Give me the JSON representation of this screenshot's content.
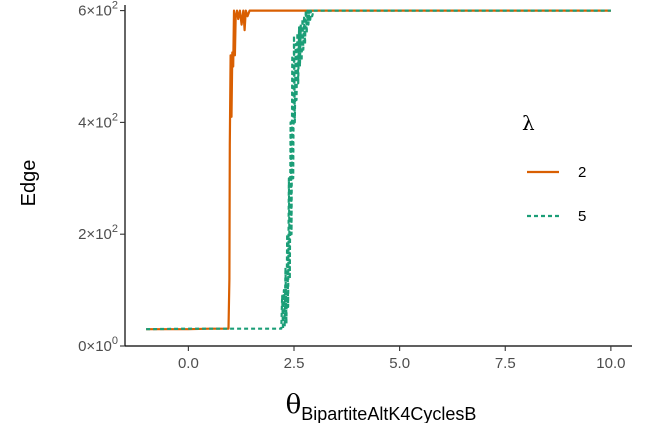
{
  "chart_data": {
    "type": "line",
    "xlabel": {
      "symbol": "θ",
      "subscript": "BipartiteAltK4CyclesB"
    },
    "ylabel": "Edge",
    "xlim": [
      -1.5,
      10.5
    ],
    "ylim": [
      0,
      610
    ],
    "x_ticks": [
      {
        "value": 0,
        "label": "0.0"
      },
      {
        "value": 2.5,
        "label": "2.5"
      },
      {
        "value": 5,
        "label": "5.0"
      },
      {
        "value": 7.5,
        "label": "7.5"
      },
      {
        "value": 10,
        "label": "10.0"
      }
    ],
    "y_ticks": [
      {
        "value": 0,
        "mantissa": "0",
        "times": "×",
        "base": "10",
        "exp": "0"
      },
      {
        "value": 200,
        "mantissa": "2",
        "times": "×",
        "base": "10",
        "exp": "2"
      },
      {
        "value": 400,
        "mantissa": "4",
        "times": "×",
        "base": "10",
        "exp": "2"
      },
      {
        "value": 600,
        "mantissa": "6",
        "times": "×",
        "base": "10",
        "exp": "2"
      }
    ],
    "grid": false,
    "legend": {
      "title": "λ",
      "position": "right"
    },
    "series": [
      {
        "name": "2",
        "color": "#d95f02",
        "dash": "solid",
        "points": [
          [
            -1,
            30
          ],
          [
            0,
            30
          ],
          [
            0.5,
            31
          ],
          [
            0.95,
            31
          ],
          [
            0.97,
            120
          ],
          [
            0.98,
            360
          ],
          [
            1.0,
            520
          ],
          [
            1.02,
            410
          ],
          [
            1.04,
            525
          ],
          [
            1.06,
            500
          ],
          [
            1.08,
            600
          ],
          [
            1.1,
            520
          ],
          [
            1.12,
            590
          ],
          [
            1.15,
            600
          ],
          [
            1.18,
            585
          ],
          [
            1.22,
            600
          ],
          [
            1.26,
            575
          ],
          [
            1.3,
            600
          ],
          [
            1.33,
            565
          ],
          [
            1.36,
            600
          ],
          [
            1.4,
            590
          ],
          [
            1.45,
            600
          ],
          [
            2,
            600
          ],
          [
            3,
            600
          ],
          [
            5,
            600
          ],
          [
            7.5,
            600
          ],
          [
            10,
            600
          ]
        ]
      },
      {
        "name": "5",
        "color": "#1b9e77",
        "dash": "dashed",
        "points": [
          [
            -1,
            30
          ],
          [
            0,
            31
          ],
          [
            1,
            31
          ],
          [
            1.5,
            31
          ],
          [
            2,
            31
          ],
          [
            2.2,
            31
          ],
          [
            2.22,
            90
          ],
          [
            2.24,
            30
          ],
          [
            2.26,
            100
          ],
          [
            2.28,
            35
          ],
          [
            2.3,
            140
          ],
          [
            2.32,
            40
          ],
          [
            2.34,
            200
          ],
          [
            2.36,
            70
          ],
          [
            2.38,
            300
          ],
          [
            2.4,
            120
          ],
          [
            2.42,
            400
          ],
          [
            2.44,
            200
          ],
          [
            2.46,
            520
          ],
          [
            2.48,
            300
          ],
          [
            2.5,
            555
          ],
          [
            2.52,
            400
          ],
          [
            2.54,
            540
          ],
          [
            2.56,
            440
          ],
          [
            2.58,
            560
          ],
          [
            2.6,
            470
          ],
          [
            2.62,
            570
          ],
          [
            2.64,
            500
          ],
          [
            2.66,
            575
          ],
          [
            2.68,
            510
          ],
          [
            2.7,
            585
          ],
          [
            2.72,
            530
          ],
          [
            2.74,
            590
          ],
          [
            2.76,
            540
          ],
          [
            2.78,
            600
          ],
          [
            2.8,
            560
          ],
          [
            2.82,
            600
          ],
          [
            2.84,
            575
          ],
          [
            2.86,
            600
          ],
          [
            2.88,
            580
          ],
          [
            2.9,
            600
          ],
          [
            2.93,
            590
          ],
          [
            2.96,
            600
          ],
          [
            3,
            600
          ],
          [
            5,
            600
          ],
          [
            7.5,
            600
          ],
          [
            10,
            600
          ]
        ]
      }
    ]
  }
}
